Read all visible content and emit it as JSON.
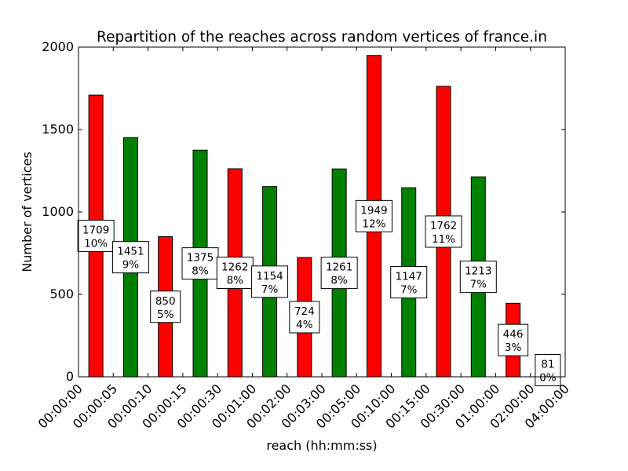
{
  "chart_data": {
    "type": "bar",
    "title": "Repartition of the reaches across random vertices of france.in",
    "xlabel": "reach (hh:mm:ss)",
    "ylabel": "Number of vertices",
    "ylim": [
      0,
      2000
    ],
    "yticks": [
      0,
      500,
      1000,
      1500,
      2000
    ],
    "xticks": [
      "00:00:00",
      "00:00:05",
      "00:00:10",
      "00:00:15",
      "00:00:30",
      "00:01:00",
      "00:02:00",
      "00:03:00",
      "00:05:00",
      "00:10:00",
      "00:15:00",
      "00:30:00",
      "01:00:00",
      "02:00:00",
      "04:00:00"
    ],
    "grid": false,
    "bins": [
      {
        "from": "00:00:00",
        "to": "00:00:05",
        "value": 1709,
        "percent": "10%",
        "color": "#ff0000"
      },
      {
        "from": "00:00:05",
        "to": "00:00:10",
        "value": 1451,
        "percent": "9%",
        "color": "#008000"
      },
      {
        "from": "00:00:10",
        "to": "00:00:15",
        "value": 850,
        "percent": "5%",
        "color": "#ff0000"
      },
      {
        "from": "00:00:15",
        "to": "00:00:30",
        "value": 1375,
        "percent": "8%",
        "color": "#008000"
      },
      {
        "from": "00:00:30",
        "to": "00:01:00",
        "value": 1262,
        "percent": "8%",
        "color": "#ff0000"
      },
      {
        "from": "00:01:00",
        "to": "00:02:00",
        "value": 1154,
        "percent": "7%",
        "color": "#008000"
      },
      {
        "from": "00:02:00",
        "to": "00:03:00",
        "value": 724,
        "percent": "4%",
        "color": "#ff0000"
      },
      {
        "from": "00:03:00",
        "to": "00:05:00",
        "value": 1261,
        "percent": "8%",
        "color": "#008000"
      },
      {
        "from": "00:05:00",
        "to": "00:10:00",
        "value": 1949,
        "percent": "12%",
        "color": "#ff0000"
      },
      {
        "from": "00:10:00",
        "to": "00:15:00",
        "value": 1147,
        "percent": "7%",
        "color": "#008000"
      },
      {
        "from": "00:15:00",
        "to": "00:30:00",
        "value": 1762,
        "percent": "11%",
        "color": "#ff0000"
      },
      {
        "from": "00:30:00",
        "to": "01:00:00",
        "value": 1213,
        "percent": "7%",
        "color": "#008000"
      },
      {
        "from": "01:00:00",
        "to": "02:00:00",
        "value": 446,
        "percent": "3%",
        "color": "#ff0000"
      },
      {
        "from": "02:00:00",
        "to": "04:00:00",
        "value": 81,
        "percent": "0%",
        "color": "#008000"
      }
    ]
  }
}
